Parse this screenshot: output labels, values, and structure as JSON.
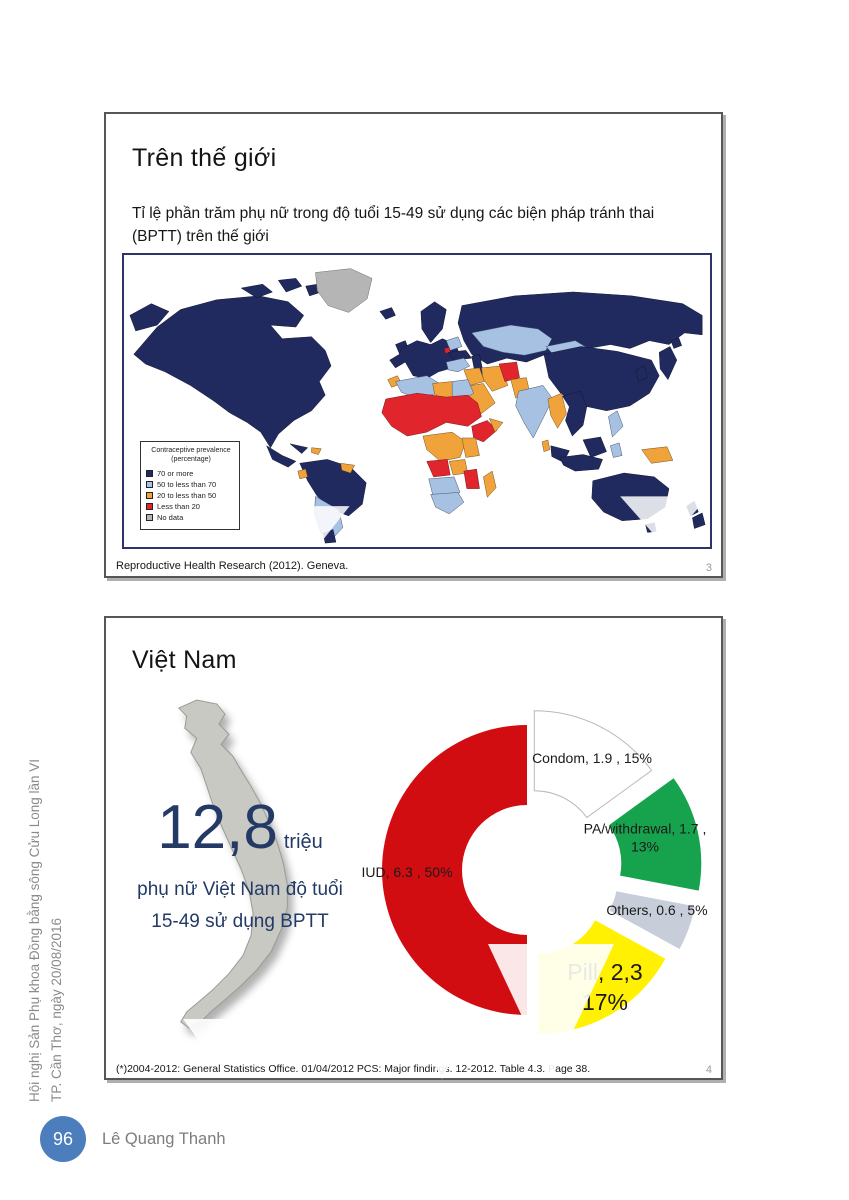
{
  "page": {
    "sidebar_line1": "Hội nghị Sản Phụ khoa Đồng bằng sông Cửu Long lần VI",
    "sidebar_line2": "TP. Cần Thơ, ngày 20/08/2016",
    "page_number": "96",
    "author": "Lê Quang Thanh"
  },
  "colors": {
    "navy-text": "#233A66",
    "circle": "#4C7DBD",
    "map-70": "#202A5E",
    "map-50": "#A6C1E2",
    "map-20": "#F0A23B",
    "map-less20": "#E0262C",
    "map-nodata": "#B5B5B5",
    "iud": "#D10D12",
    "condom": "#FFFFFF",
    "pa": "#17A24D",
    "others": "#C7CEDA",
    "pill": "#FFF101"
  },
  "slide1": {
    "number": "3",
    "title": "Trên thế giới",
    "subtitle": "Tỉ lệ phần trăm phụ nữ trong độ tuổi 15-49 sử dụng các biện pháp tránh thai (BPTT) trên thế giới",
    "caption": "Reproductive Health Research (2012). Geneva."
  },
  "slide2": {
    "number": "4",
    "title": "Việt Nam",
    "stat_number": "12,8",
    "stat_unit": "triệu",
    "stat_line1": "phụ nữ Việt Nam độ tuổi",
    "stat_line2": "15-49 sử dụng BPTT",
    "footnote": "(*)2004-2012: General Statistics Office. 01/04/2012 PCS: Major findings. 12-2012. Table 4.3. Page 38."
  },
  "chart_data": [
    {
      "type": "choropleth_map",
      "title": "Tỉ lệ phần trăm phụ nữ trong độ tuổi 15-49 sử dụng các biện pháp tránh thai (BPTT) trên thế giới",
      "source": "Reproductive Health Research (2012). Geneva.",
      "legend": {
        "title_line1": "Contraceptive prevalence",
        "title_line2": "(percentage)",
        "items": [
          {
            "label": "70 or more",
            "color_key": "map-70"
          },
          {
            "label": "50 to less than 70",
            "color_key": "map-50"
          },
          {
            "label": "20 to less than 50",
            "color_key": "map-20"
          },
          {
            "label": "Less than 20",
            "color_key": "map-less20"
          },
          {
            "label": "No data",
            "color_key": "map-nodata"
          }
        ]
      }
    },
    {
      "type": "pie",
      "donut": true,
      "note": "labels show method, millions of users, percent share",
      "slices": [
        {
          "label": "Condom",
          "value": 1.9,
          "pct": 15,
          "label_text": "Condom,  1.9 , 15%",
          "color_key": "condom",
          "stroke": "#b9b9b9",
          "explode": 16
        },
        {
          "label": "PA/withdrawal",
          "value": 1.7,
          "pct": 13,
          "label_line1": "PA/withdrawal,  1.7 ,",
          "label_line2": "13%",
          "color_key": "pa",
          "stroke": "none",
          "explode": 30
        },
        {
          "label": "Others",
          "value": 0.6,
          "pct": 5,
          "label_text": "Others,  0.6 , 5%",
          "color_key": "others",
          "stroke": "none",
          "explode": 27
        },
        {
          "label": "Pill",
          "value": 2.3,
          "pct": 17,
          "label_line1": "Pill,  2,3",
          "label_line2": "17%",
          "color_key": "pill",
          "stroke": "none",
          "explode": 22
        },
        {
          "label": "IUD",
          "value": 6.3,
          "pct": 50,
          "label_text": "IUD,  6.3 , 50%",
          "color_key": "iud",
          "stroke": "none",
          "explode": 0
        }
      ]
    }
  ]
}
